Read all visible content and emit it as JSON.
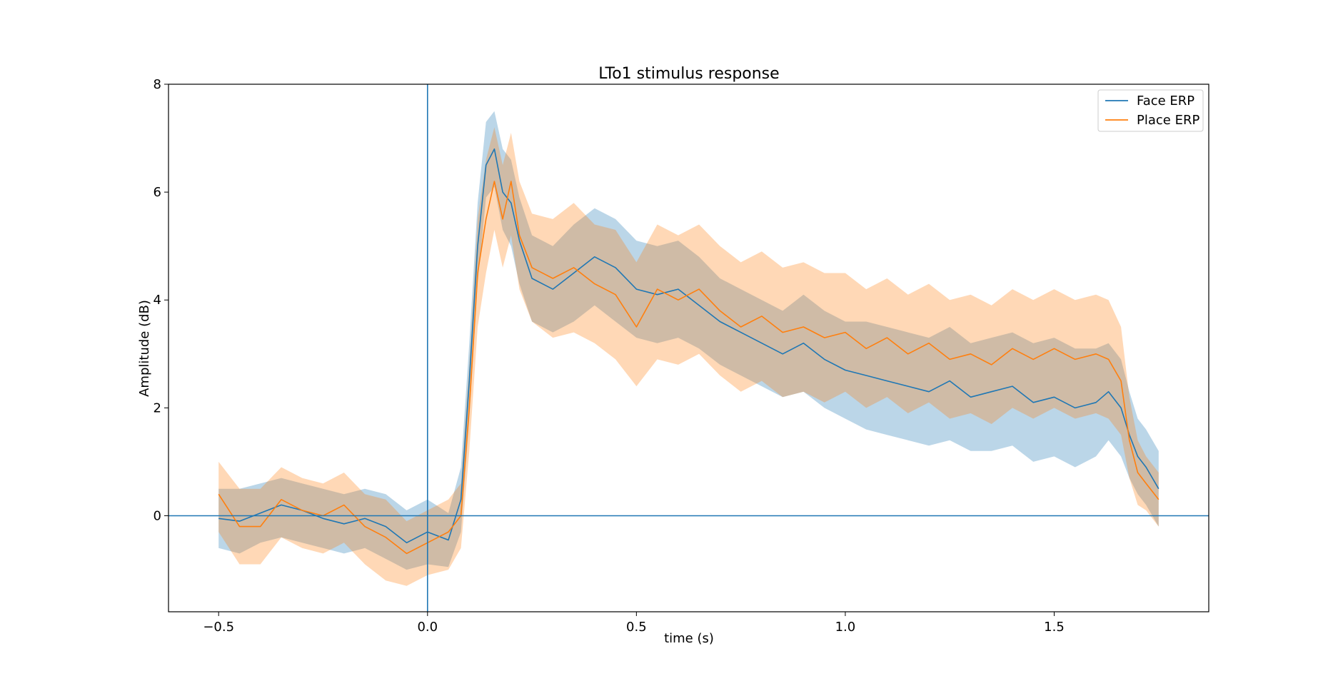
{
  "chart_data": {
    "type": "line",
    "title": "LTo1 stimulus response",
    "xlabel": "time (s)",
    "ylabel": "Amplitude (dB)",
    "xlim": [
      -0.62,
      1.87
    ],
    "ylim": [
      -1.78,
      8.0
    ],
    "xticks": [
      -0.5,
      0.0,
      0.5,
      1.0,
      1.5
    ],
    "xtick_labels": [
      "−0.5",
      "0.0",
      "0.5",
      "1.0",
      "1.5"
    ],
    "yticks": [
      0,
      2,
      4,
      6,
      8
    ],
    "ytick_labels": [
      "0",
      "2",
      "4",
      "6",
      "8"
    ],
    "grid": false,
    "legend_position": "top-right",
    "reference_lines": {
      "vertical_x": 0.0,
      "horizontal_y": 0.0,
      "color": "#1f77b4"
    },
    "x": [
      -0.5,
      -0.45,
      -0.4,
      -0.35,
      -0.3,
      -0.25,
      -0.2,
      -0.15,
      -0.1,
      -0.05,
      0.0,
      0.05,
      0.08,
      0.1,
      0.12,
      0.14,
      0.16,
      0.18,
      0.2,
      0.22,
      0.25,
      0.3,
      0.35,
      0.4,
      0.45,
      0.5,
      0.55,
      0.6,
      0.65,
      0.7,
      0.75,
      0.8,
      0.85,
      0.9,
      0.95,
      1.0,
      1.05,
      1.1,
      1.15,
      1.2,
      1.25,
      1.3,
      1.35,
      1.4,
      1.45,
      1.5,
      1.55,
      1.6,
      1.63,
      1.66,
      1.68,
      1.7,
      1.72,
      1.75
    ],
    "series": [
      {
        "name": "Face ERP",
        "color": "#1f77b4",
        "values": [
          -0.05,
          -0.1,
          0.05,
          0.2,
          0.1,
          -0.05,
          -0.15,
          -0.05,
          -0.2,
          -0.5,
          -0.3,
          -0.45,
          0.3,
          2.5,
          5.0,
          6.5,
          6.8,
          6.0,
          5.8,
          5.1,
          4.4,
          4.2,
          4.5,
          4.8,
          4.6,
          4.2,
          4.1,
          4.2,
          3.9,
          3.6,
          3.4,
          3.2,
          3.0,
          3.2,
          2.9,
          2.7,
          2.6,
          2.5,
          2.4,
          2.3,
          2.5,
          2.2,
          2.3,
          2.4,
          2.1,
          2.2,
          2.0,
          2.1,
          2.3,
          2.0,
          1.5,
          1.1,
          0.9,
          0.5
        ],
        "lower": [
          -0.6,
          -0.7,
          -0.5,
          -0.4,
          -0.5,
          -0.6,
          -0.7,
          -0.6,
          -0.8,
          -1.0,
          -0.9,
          -0.95,
          -0.3,
          1.8,
          4.3,
          5.9,
          6.1,
          5.3,
          5.0,
          4.3,
          3.6,
          3.4,
          3.6,
          3.9,
          3.6,
          3.3,
          3.2,
          3.3,
          3.1,
          2.8,
          2.6,
          2.4,
          2.2,
          2.3,
          2.0,
          1.8,
          1.6,
          1.5,
          1.4,
          1.3,
          1.4,
          1.2,
          1.2,
          1.3,
          1.0,
          1.1,
          0.9,
          1.1,
          1.4,
          1.1,
          0.7,
          0.4,
          0.2,
          -0.2
        ],
        "upper": [
          0.5,
          0.5,
          0.6,
          0.7,
          0.6,
          0.5,
          0.4,
          0.5,
          0.4,
          0.1,
          0.3,
          0.05,
          0.9,
          3.2,
          5.8,
          7.3,
          7.5,
          6.8,
          6.6,
          5.9,
          5.2,
          5.0,
          5.4,
          5.7,
          5.5,
          5.1,
          5.0,
          5.1,
          4.8,
          4.4,
          4.2,
          4.0,
          3.8,
          4.1,
          3.8,
          3.6,
          3.6,
          3.5,
          3.4,
          3.3,
          3.5,
          3.2,
          3.3,
          3.4,
          3.2,
          3.3,
          3.1,
          3.1,
          3.2,
          2.9,
          2.3,
          1.8,
          1.6,
          1.2
        ]
      },
      {
        "name": "Place ERP",
        "color": "#ff7f0e",
        "values": [
          0.4,
          -0.2,
          -0.2,
          0.3,
          0.1,
          0.0,
          0.2,
          -0.2,
          -0.4,
          -0.7,
          -0.5,
          -0.3,
          0.0,
          2.0,
          4.5,
          5.5,
          6.2,
          5.5,
          6.2,
          5.2,
          4.6,
          4.4,
          4.6,
          4.3,
          4.1,
          3.5,
          4.2,
          4.0,
          4.2,
          3.8,
          3.5,
          3.7,
          3.4,
          3.5,
          3.3,
          3.4,
          3.1,
          3.3,
          3.0,
          3.2,
          2.9,
          3.0,
          2.8,
          3.1,
          2.9,
          3.1,
          2.9,
          3.0,
          2.9,
          2.5,
          1.4,
          0.8,
          0.6,
          0.3
        ],
        "lower": [
          -0.3,
          -0.9,
          -0.9,
          -0.4,
          -0.6,
          -0.7,
          -0.5,
          -0.9,
          -1.2,
          -1.3,
          -1.1,
          -1.0,
          -0.6,
          1.2,
          3.5,
          4.5,
          5.3,
          4.6,
          5.2,
          4.2,
          3.6,
          3.3,
          3.4,
          3.2,
          2.9,
          2.4,
          2.9,
          2.8,
          3.0,
          2.6,
          2.3,
          2.5,
          2.2,
          2.3,
          2.1,
          2.3,
          2.0,
          2.2,
          1.9,
          2.1,
          1.8,
          1.9,
          1.7,
          2.0,
          1.8,
          2.0,
          1.8,
          1.9,
          1.8,
          1.5,
          0.7,
          0.2,
          0.1,
          -0.2
        ],
        "upper": [
          1.0,
          0.5,
          0.5,
          0.9,
          0.7,
          0.6,
          0.8,
          0.4,
          0.3,
          -0.1,
          0.1,
          0.3,
          0.6,
          2.8,
          5.5,
          6.6,
          7.2,
          6.5,
          7.1,
          6.2,
          5.6,
          5.5,
          5.8,
          5.4,
          5.3,
          4.7,
          5.4,
          5.2,
          5.4,
          5.0,
          4.7,
          4.9,
          4.6,
          4.7,
          4.5,
          4.5,
          4.2,
          4.4,
          4.1,
          4.3,
          4.0,
          4.1,
          3.9,
          4.2,
          4.0,
          4.2,
          4.0,
          4.1,
          4.0,
          3.5,
          2.2,
          1.4,
          1.1,
          0.8
        ]
      }
    ]
  }
}
